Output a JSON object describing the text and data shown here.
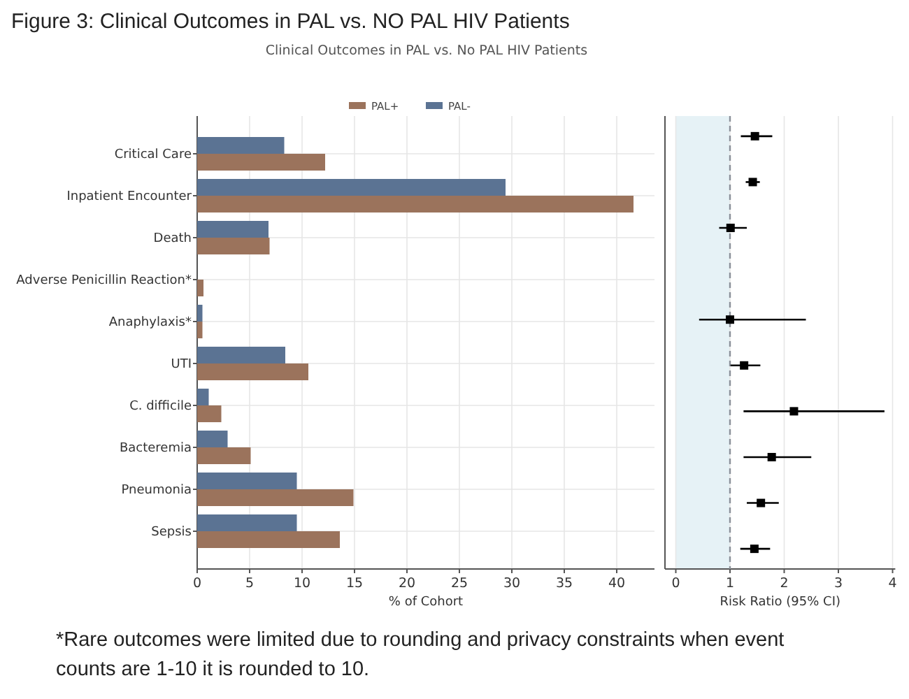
{
  "chart_data": [
    {
      "type": "bar",
      "orientation": "horizontal",
      "title": "Figure 3: Clinical Outcomes in PAL vs. NO PAL HIV Patients",
      "subtitle": "Clinical Outcomes in PAL vs. No PAL HIV Patients",
      "xlabel": "% of Cohort",
      "categories": [
        "Critical Care",
        "Inpatient Encounter",
        "Death",
        "Adverse Penicillin Reaction*",
        "Anaphylaxis*",
        "UTI",
        "C. difficile",
        "Bacteremia",
        "Pneumonia",
        "Sepsis"
      ],
      "series": [
        {
          "name": "PAL+",
          "color": "#9b735c",
          "values": [
            12.2,
            41.6,
            6.9,
            0.6,
            0.5,
            10.6,
            2.3,
            5.1,
            14.9,
            13.6
          ]
        },
        {
          "name": "PAL-",
          "color": "#5b7393",
          "values": [
            8.3,
            29.4,
            6.8,
            null,
            0.5,
            8.4,
            1.1,
            2.9,
            9.5,
            9.5
          ]
        }
      ],
      "xlim": [
        0,
        43.6
      ],
      "xticks": [
        0,
        5,
        10,
        15,
        20,
        25,
        30,
        35,
        40
      ],
      "grid": true,
      "legend": "top",
      "annotations": [
        "*Rare outcomes were limited due to rounding and privacy constraints when event counts are 1-10 it is rounded to 10."
      ]
    },
    {
      "type": "scatter",
      "orientation": "horizontal",
      "xlabel": "Risk Ratio (95% CI)",
      "categories": [
        null,
        null,
        null,
        null,
        null,
        null,
        null,
        null,
        null,
        null
      ],
      "tick_labels": "x",
      "values": [
        1.46,
        1.42,
        1.01,
        null,
        1.0,
        1.26,
        2.18,
        1.77,
        1.57,
        1.45
      ],
      "errors": [
        [
          1.2,
          1.78
        ],
        [
          1.29,
          1.55
        ],
        [
          0.8,
          1.31
        ],
        null,
        [
          0.43,
          2.4
        ],
        [
          1.01,
          1.56
        ],
        [
          1.25,
          3.85
        ],
        [
          1.25,
          2.5
        ],
        [
          1.31,
          1.9
        ],
        [
          1.19,
          1.74
        ]
      ],
      "color": "#000000",
      "marker": "square",
      "xlim": [
        -0.2,
        4.05
      ],
      "xticks": [
        0,
        1,
        2,
        3,
        4
      ],
      "grid": "x",
      "ref_lines": [
        {
          "axis": "x",
          "value": 1,
          "line_style": "dashed",
          "color": "#8a9099"
        }
      ],
      "bands": [
        {
          "axis": "x",
          "from": 0,
          "to": 1,
          "color": "#e6f2f6"
        }
      ]
    }
  ]
}
